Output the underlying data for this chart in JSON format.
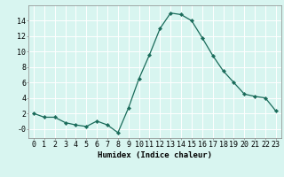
{
  "x": [
    0,
    1,
    2,
    3,
    4,
    5,
    6,
    7,
    8,
    9,
    10,
    11,
    12,
    13,
    14,
    15,
    16,
    17,
    18,
    19,
    20,
    21,
    22,
    23
  ],
  "y": [
    2.0,
    1.5,
    1.5,
    0.8,
    0.5,
    0.3,
    1.0,
    0.5,
    -0.5,
    2.7,
    6.5,
    9.6,
    13.0,
    15.0,
    14.8,
    14.0,
    11.8,
    9.5,
    7.5,
    6.0,
    4.5,
    4.2,
    4.0,
    2.3
  ],
  "line_color": "#1a6b5a",
  "marker": "D",
  "marker_size": 2.2,
  "bg_color": "#d8f5f0",
  "grid_color": "#ffffff",
  "xlabel": "Humidex (Indice chaleur)",
  "ylim": [
    -1.2,
    16.0
  ],
  "xlim": [
    -0.5,
    23.5
  ],
  "yticks": [
    0,
    2,
    4,
    6,
    8,
    10,
    12,
    14
  ],
  "ytick_labels": [
    "-0",
    "2",
    "4",
    "6",
    "8",
    "10",
    "12",
    "14"
  ],
  "xticks": [
    0,
    1,
    2,
    3,
    4,
    5,
    6,
    7,
    8,
    9,
    10,
    11,
    12,
    13,
    14,
    15,
    16,
    17,
    18,
    19,
    20,
    21,
    22,
    23
  ],
  "label_fontsize": 6.5,
  "tick_fontsize": 6.0
}
